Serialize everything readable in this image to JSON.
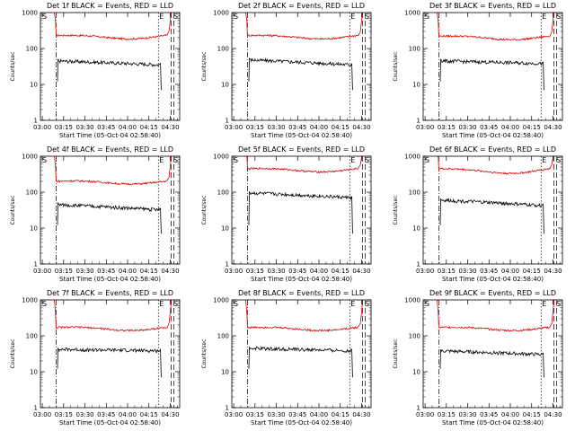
{
  "common": {
    "ylabel": "Counts/sec",
    "xlabel": "Start Time (05-Oct-04 02:58:40)",
    "x_ticks": [
      "03:00",
      "03:15",
      "03:30",
      "03:45",
      "04:00",
      "04:15",
      "04:30"
    ],
    "y_ticks": [
      "1",
      "10",
      "100",
      "1000"
    ],
    "title_suffix": " BLACK = Events, RED = LLD",
    "series_colors": {
      "events": "#000000",
      "lld": "#dd0000"
    },
    "marker_S": "S",
    "marker_E": "E"
  },
  "chart_data": [
    {
      "type": "line",
      "title": "Det 1f BLACK = Events, RED = LLD",
      "xlim_min": [
        0,
        98
      ],
      "ylim": [
        1,
        1000
      ],
      "yscale": "log",
      "series": [
        {
          "key": "lld",
          "values": {
            "start_min": 11,
            "end_min": 92,
            "level": 230,
            "dip": 180
          }
        },
        {
          "key": "events",
          "values": {
            "start_min": 12,
            "end_min": 85,
            "level": 45,
            "end_level": 35
          }
        }
      ],
      "vlines_min": [
        11,
        83,
        92,
        94
      ]
    },
    {
      "type": "line",
      "title": "Det 2f BLACK = Events, RED = LLD",
      "xlim_min": [
        0,
        98
      ],
      "ylim": [
        1,
        1000
      ],
      "yscale": "log",
      "series": [
        {
          "key": "lld",
          "values": {
            "start_min": 11,
            "end_min": 92,
            "level": 230,
            "dip": 180
          }
        },
        {
          "key": "events",
          "values": {
            "start_min": 12,
            "end_min": 85,
            "level": 48,
            "end_level": 35
          }
        }
      ],
      "vlines_min": [
        11,
        83,
        92,
        94
      ]
    },
    {
      "type": "line",
      "title": "Det 3f BLACK = Events, RED = LLD",
      "xlim_min": [
        0,
        98
      ],
      "ylim": [
        1,
        1000
      ],
      "yscale": "log",
      "series": [
        {
          "key": "lld",
          "values": {
            "start_min": 11,
            "end_min": 92,
            "level": 220,
            "dip": 170
          }
        },
        {
          "key": "events",
          "values": {
            "start_min": 12,
            "end_min": 85,
            "level": 45,
            "end_level": 38
          }
        }
      ],
      "vlines_min": [
        11,
        83,
        92,
        94
      ]
    },
    {
      "type": "line",
      "title": "Det 4f BLACK = Events, RED = LLD",
      "xlim_min": [
        0,
        98
      ],
      "ylim": [
        1,
        1000
      ],
      "yscale": "log",
      "series": [
        {
          "key": "lld",
          "values": {
            "start_min": 11,
            "end_min": 92,
            "level": 200,
            "dip": 170
          }
        },
        {
          "key": "events",
          "values": {
            "start_min": 12,
            "end_min": 85,
            "level": 45,
            "end_level": 32
          }
        }
      ],
      "vlines_min": [
        11,
        83,
        92,
        94
      ]
    },
    {
      "type": "line",
      "title": "Det 5f BLACK = Events, RED = LLD",
      "xlim_min": [
        0,
        98
      ],
      "ylim": [
        1,
        1000
      ],
      "yscale": "log",
      "series": [
        {
          "key": "lld",
          "values": {
            "start_min": 11,
            "end_min": 92,
            "level": 450,
            "dip": 360
          }
        },
        {
          "key": "events",
          "values": {
            "start_min": 12,
            "end_min": 85,
            "level": 95,
            "end_level": 70
          }
        }
      ],
      "vlines_min": [
        11,
        83,
        92,
        94
      ]
    },
    {
      "type": "line",
      "title": "Det 6f BLACK = Events, RED = LLD",
      "xlim_min": [
        0,
        98
      ],
      "ylim": [
        1,
        1000
      ],
      "yscale": "log",
      "series": [
        {
          "key": "lld",
          "values": {
            "start_min": 11,
            "end_min": 92,
            "level": 450,
            "dip": 300
          }
        },
        {
          "key": "events",
          "values": {
            "start_min": 12,
            "end_min": 85,
            "level": 60,
            "end_level": 42
          }
        }
      ],
      "vlines_min": [
        11,
        83,
        92,
        94
      ]
    },
    {
      "type": "line",
      "title": "Det 7f BLACK = Events, RED = LLD",
      "xlim_min": [
        0,
        98
      ],
      "ylim": [
        1,
        1000
      ],
      "yscale": "log",
      "series": [
        {
          "key": "lld",
          "values": {
            "start_min": 11,
            "end_min": 92,
            "level": 170,
            "dip": 140
          }
        },
        {
          "key": "events",
          "values": {
            "start_min": 12,
            "end_min": 85,
            "level": 42,
            "end_level": 38
          }
        }
      ],
      "vlines_min": [
        11,
        83,
        92,
        94
      ]
    },
    {
      "type": "line",
      "title": "Det 8f BLACK = Events, RED = LLD",
      "xlim_min": [
        0,
        98
      ],
      "ylim": [
        1,
        1000
      ],
      "yscale": "log",
      "series": [
        {
          "key": "lld",
          "values": {
            "start_min": 11,
            "end_min": 92,
            "level": 170,
            "dip": 140
          }
        },
        {
          "key": "events",
          "values": {
            "start_min": 12,
            "end_min": 85,
            "level": 45,
            "end_level": 38
          }
        }
      ],
      "vlines_min": [
        11,
        83,
        92,
        94
      ]
    },
    {
      "type": "line",
      "title": "Det 9f BLACK = Events, RED = LLD",
      "xlim_min": [
        0,
        98
      ],
      "ylim": [
        1,
        1000
      ],
      "yscale": "log",
      "series": [
        {
          "key": "lld",
          "values": {
            "start_min": 11,
            "end_min": 92,
            "level": 170,
            "dip": 140
          }
        },
        {
          "key": "events",
          "values": {
            "start_min": 12,
            "end_min": 85,
            "level": 38,
            "end_level": 30
          }
        }
      ],
      "vlines_min": [
        11,
        83,
        92,
        94
      ]
    }
  ]
}
